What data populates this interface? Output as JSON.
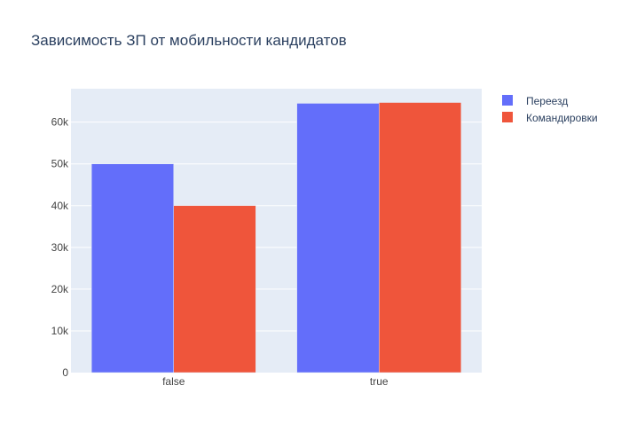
{
  "chart_data": {
    "type": "bar",
    "title": "Зависимость ЗП от мобильности кандидатов",
    "xlabel": "",
    "ylabel": "",
    "categories": [
      "false",
      "true"
    ],
    "series": [
      {
        "name": "Переезд",
        "values": [
          50000,
          64500
        ],
        "color": "#636efa"
      },
      {
        "name": "Командировки",
        "values": [
          40000,
          64700
        ],
        "color": "#ef553b"
      }
    ],
    "ylim": [
      0,
      68000
    ],
    "yticks": [
      0,
      10000,
      20000,
      30000,
      40000,
      50000,
      60000
    ],
    "yticklabels": [
      "0",
      "10k",
      "20k",
      "30k",
      "40k",
      "50k",
      "60k"
    ],
    "grid": true,
    "legend_position": "top-right",
    "plot_background": "#e5ecf6",
    "text_color": "#2a3f5f",
    "tick_color": "#444444"
  }
}
